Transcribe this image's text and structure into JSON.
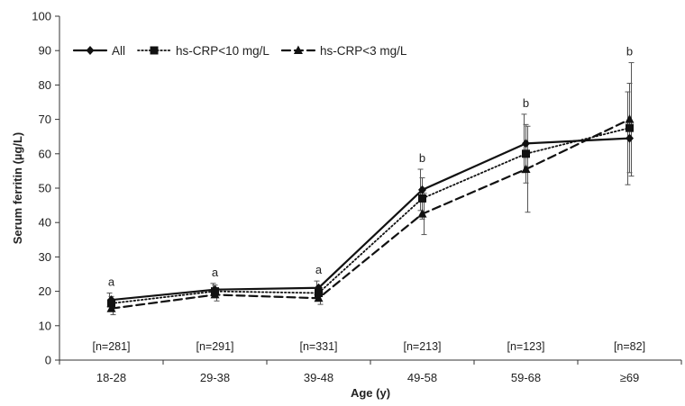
{
  "chart_data": {
    "type": "line",
    "title": "",
    "xlabel": "Age (y)",
    "ylabel": "Serum ferritin (µg/L)",
    "ylim": [
      0,
      100
    ],
    "yticks": [
      0,
      10,
      20,
      30,
      40,
      50,
      60,
      70,
      80,
      90,
      100
    ],
    "categories": [
      "18-28",
      "29-38",
      "39-48",
      "49-58",
      "59-68",
      "≥69"
    ],
    "n_labels": [
      "[n=281]",
      "[n=291]",
      "[n=331]",
      "[n=213]",
      "[n=123]",
      "[n=82]"
    ],
    "significance_letters": [
      "a",
      "a",
      "a",
      "b",
      "b",
      "b"
    ],
    "legend_position": "top-left",
    "grid": false,
    "series": [
      {
        "name": "All",
        "marker": "diamond",
        "line_style": "solid",
        "values": [
          17.5,
          20.5,
          21.0,
          49.5,
          63.0,
          64.5
        ],
        "error": [
          2.0,
          1.8,
          2.0,
          6.0,
          8.5,
          13.5
        ]
      },
      {
        "name": "hs-CRP<10 mg/L",
        "marker": "square",
        "line_style": "dotted",
        "values": [
          16.5,
          20.0,
          19.5,
          47.0,
          60.0,
          67.5
        ],
        "error": [
          2.0,
          1.8,
          2.0,
          6.0,
          8.5,
          13.0
        ]
      },
      {
        "name": "hs-CRP<3 mg/L",
        "marker": "triangle",
        "line_style": "dashed",
        "values": [
          15.0,
          19.0,
          18.0,
          42.5,
          55.5,
          70.0
        ],
        "error": [
          1.8,
          1.8,
          1.8,
          6.0,
          12.5,
          16.5
        ]
      }
    ]
  }
}
